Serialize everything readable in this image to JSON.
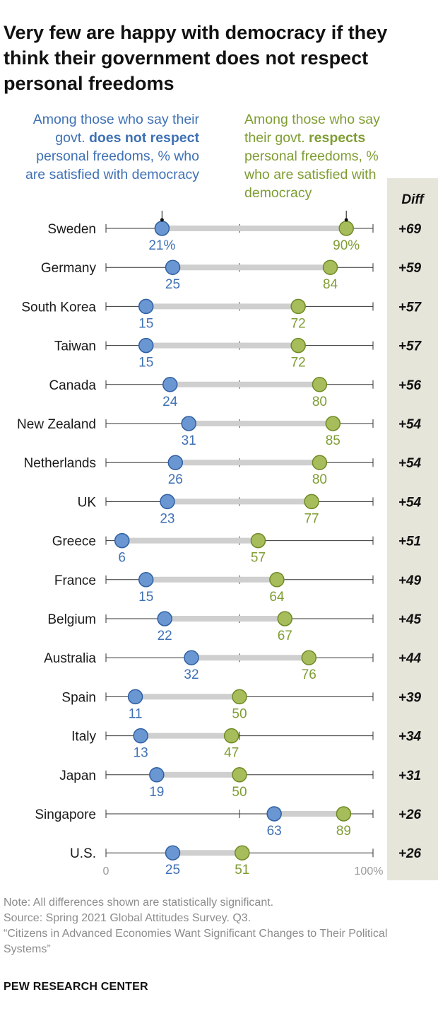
{
  "title": "Very few are happy with democracy if they think their government does not respect personal freedoms",
  "legend": {
    "left_pre": "Among those who say their govt. ",
    "left_bold": "does not respect",
    "left_post": " personal freedoms, % who are satisfied with democracy",
    "right_pre": "Among those who say their govt. ",
    "right_bold": "respects",
    "right_post": " personal freedoms, % who are satisfied with democracy"
  },
  "diff_header": "Diff",
  "colors": {
    "not_respect": "#6a97d2",
    "not_respect_stroke": "#2f5fa3",
    "not_respect_text": "#3f71b4",
    "respects": "#a7bd5b",
    "respects_stroke": "#6e8a25",
    "respects_text": "#7f9d33",
    "bar": "#cfcfcf",
    "diff_bg": "#e5e5da"
  },
  "chart_data": {
    "type": "dot-range",
    "title": "Very few are happy with democracy if they think their government does not respect personal freedoms",
    "xlim": [
      0,
      100
    ],
    "x_tick_labels": [
      "0",
      "100%"
    ],
    "series": [
      {
        "name": "Among those who say their govt. does not respect personal freedoms, % who are satisfied with democracy"
      },
      {
        "name": "Among those who say their govt. respects personal freedoms, % who are satisfied with democracy"
      }
    ],
    "rows": [
      {
        "country": "Sweden",
        "not_respect": 21,
        "respects": 90,
        "not_label": "21%",
        "resp_label": "90%",
        "diff": "+69"
      },
      {
        "country": "Germany",
        "not_respect": 25,
        "respects": 84,
        "not_label": "25",
        "resp_label": "84",
        "diff": "+59"
      },
      {
        "country": "South Korea",
        "not_respect": 15,
        "respects": 72,
        "not_label": "15",
        "resp_label": "72",
        "diff": "+57"
      },
      {
        "country": "Taiwan",
        "not_respect": 15,
        "respects": 72,
        "not_label": "15",
        "resp_label": "72",
        "diff": "+57"
      },
      {
        "country": "Canada",
        "not_respect": 24,
        "respects": 80,
        "not_label": "24",
        "resp_label": "80",
        "diff": "+56"
      },
      {
        "country": "New Zealand",
        "not_respect": 31,
        "respects": 85,
        "not_label": "31",
        "resp_label": "85",
        "diff": "+54"
      },
      {
        "country": "Netherlands",
        "not_respect": 26,
        "respects": 80,
        "not_label": "26",
        "resp_label": "80",
        "diff": "+54"
      },
      {
        "country": "UK",
        "not_respect": 23,
        "respects": 77,
        "not_label": "23",
        "resp_label": "77",
        "diff": "+54"
      },
      {
        "country": "Greece",
        "not_respect": 6,
        "respects": 57,
        "not_label": "6",
        "resp_label": "57",
        "diff": "+51"
      },
      {
        "country": "France",
        "not_respect": 15,
        "respects": 64,
        "not_label": "15",
        "resp_label": "64",
        "diff": "+49"
      },
      {
        "country": "Belgium",
        "not_respect": 22,
        "respects": 67,
        "not_label": "22",
        "resp_label": "67",
        "diff": "+45"
      },
      {
        "country": "Australia",
        "not_respect": 32,
        "respects": 76,
        "not_label": "32",
        "resp_label": "76",
        "diff": "+44"
      },
      {
        "country": "Spain",
        "not_respect": 11,
        "respects": 50,
        "not_label": "11",
        "resp_label": "50",
        "diff": "+39"
      },
      {
        "country": "Italy",
        "not_respect": 13,
        "respects": 47,
        "not_label": "13",
        "resp_label": "47",
        "diff": "+34"
      },
      {
        "country": "Japan",
        "not_respect": 19,
        "respects": 50,
        "not_label": "19",
        "resp_label": "50",
        "diff": "+31"
      },
      {
        "country": "Singapore",
        "not_respect": 63,
        "respects": 89,
        "not_label": "63",
        "resp_label": "89",
        "diff": "+26"
      },
      {
        "country": "U.S.",
        "not_respect": 25,
        "respects": 51,
        "not_label": "25",
        "resp_label": "51",
        "diff": "+26"
      }
    ]
  },
  "footer": {
    "note": "Note: All differences shown are statistically significant.",
    "source": "Source: Spring 2021 Global Attitudes Survey. Q3.",
    "report": "“Citizens in Advanced Economies Want Significant Changes to Their Political Systems”",
    "brand": "PEW RESEARCH CENTER"
  }
}
